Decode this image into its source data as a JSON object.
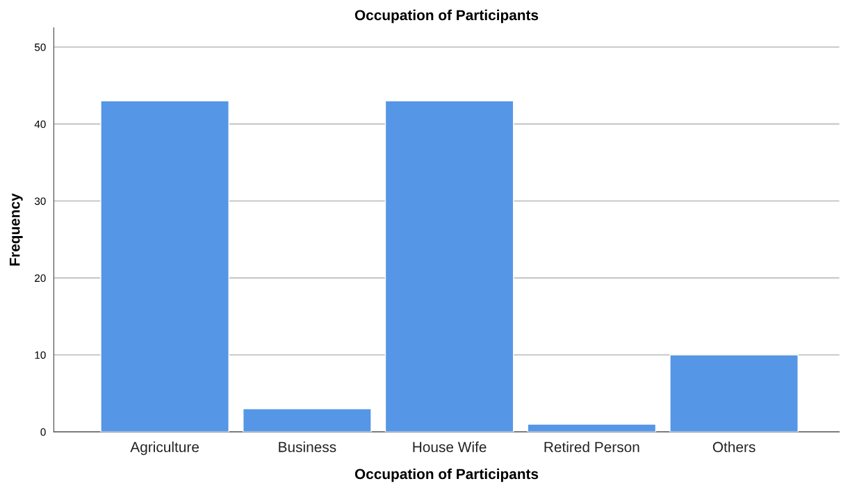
{
  "chart_data": {
    "type": "bar",
    "title": "Occupation of Participants",
    "xlabel": "Occupation of Participants",
    "ylabel": "Frequency",
    "categories": [
      "Agriculture",
      "Business",
      "House Wife",
      "Retired Person",
      "Others"
    ],
    "values": [
      43,
      3,
      43,
      1,
      10
    ],
    "color": "#5596e6",
    "ylim": [
      0,
      52.5
    ],
    "yticks": [
      0,
      10,
      20,
      30,
      40,
      50
    ],
    "grid": "y",
    "legend": false
  }
}
